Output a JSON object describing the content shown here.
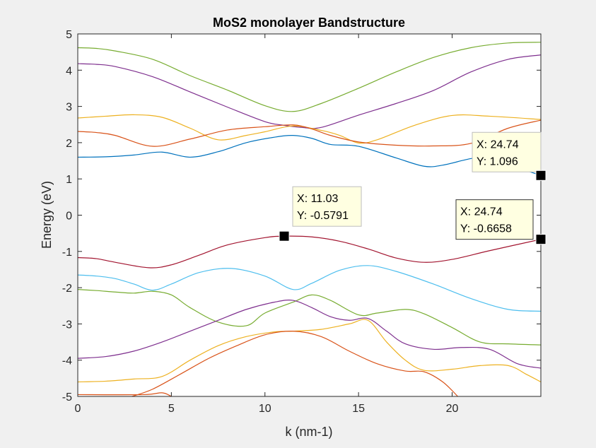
{
  "chart_data": {
    "type": "line",
    "title": "MoS2 monolayer Bandstructure",
    "xlabel": "k (nm-1)",
    "ylabel": "Energy (eV)",
    "xlim": [
      0,
      24.74
    ],
    "ylim": [
      -5,
      5
    ],
    "xticks": [
      0,
      5,
      10,
      15,
      20
    ],
    "yticks": [
      -5,
      -4,
      -3,
      -2,
      -1,
      0,
      1,
      2,
      3,
      4,
      5
    ],
    "grid": false,
    "legend": "none",
    "series": [
      {
        "color": "#77ac30",
        "points": [
          [
            0,
            4.62
          ],
          [
            1,
            4.6
          ],
          [
            2,
            4.53
          ],
          [
            4,
            4.3
          ],
          [
            6,
            3.85
          ],
          [
            8,
            3.45
          ],
          [
            10,
            3.02
          ],
          [
            11.5,
            2.86
          ],
          [
            13,
            3.08
          ],
          [
            15,
            3.5
          ],
          [
            17,
            3.95
          ],
          [
            19,
            4.35
          ],
          [
            21,
            4.62
          ],
          [
            23,
            4.75
          ],
          [
            24.74,
            4.77
          ]
        ]
      },
      {
        "color": "#7e2f8e",
        "points": [
          [
            0,
            4.18
          ],
          [
            1,
            4.16
          ],
          [
            2,
            4.1
          ],
          [
            4,
            3.82
          ],
          [
            6,
            3.4
          ],
          [
            8,
            2.98
          ],
          [
            10,
            2.58
          ],
          [
            11,
            2.48
          ],
          [
            12,
            2.42
          ],
          [
            13,
            2.42
          ],
          [
            15,
            2.76
          ],
          [
            17,
            3.08
          ],
          [
            19,
            3.44
          ],
          [
            21,
            3.95
          ],
          [
            23,
            4.3
          ],
          [
            24.74,
            4.42
          ]
        ]
      },
      {
        "color": "#edb120",
        "points": [
          [
            0,
            2.68
          ],
          [
            1.5,
            2.73
          ],
          [
            3,
            2.77
          ],
          [
            4.5,
            2.7
          ],
          [
            6,
            2.4
          ],
          [
            7.5,
            2.08
          ],
          [
            9,
            2.2
          ],
          [
            10,
            2.3
          ],
          [
            11.5,
            2.46
          ],
          [
            13,
            2.34
          ],
          [
            14,
            2.2
          ],
          [
            15,
            1.99
          ],
          [
            16,
            2.08
          ],
          [
            18,
            2.48
          ],
          [
            20,
            2.75
          ],
          [
            22,
            2.73
          ],
          [
            24.74,
            2.64
          ]
        ]
      },
      {
        "color": "#d95319",
        "points": [
          [
            0,
            2.31
          ],
          [
            1,
            2.28
          ],
          [
            2,
            2.2
          ],
          [
            4,
            1.9
          ],
          [
            6,
            2.1
          ],
          [
            8,
            2.35
          ],
          [
            10,
            2.44
          ],
          [
            11.5,
            2.49
          ],
          [
            12.5,
            2.38
          ],
          [
            13.5,
            2.2
          ],
          [
            15,
            2.02
          ],
          [
            17,
            1.93
          ],
          [
            19,
            1.91
          ],
          [
            21,
            1.98
          ],
          [
            23,
            2.4
          ],
          [
            24.74,
            2.62
          ]
        ]
      },
      {
        "color": "#0072bd",
        "points": [
          [
            0,
            1.6
          ],
          [
            1.5,
            1.61
          ],
          [
            3,
            1.66
          ],
          [
            4.5,
            1.74
          ],
          [
            6,
            1.6
          ],
          [
            7.5,
            1.75
          ],
          [
            9,
            2.0
          ],
          [
            10.5,
            2.15
          ],
          [
            11.5,
            2.2
          ],
          [
            12.5,
            2.12
          ],
          [
            13.5,
            1.95
          ],
          [
            15,
            1.9
          ],
          [
            17,
            1.58
          ],
          [
            18.5,
            1.35
          ],
          [
            19.5,
            1.38
          ],
          [
            21,
            1.56
          ],
          [
            22,
            1.6
          ],
          [
            23,
            1.4
          ],
          [
            24.74,
            1.096
          ]
        ]
      },
      {
        "color": "#a2142f",
        "points": [
          [
            0,
            -1.17
          ],
          [
            1,
            -1.2
          ],
          [
            2,
            -1.3
          ],
          [
            3.8,
            -1.45
          ],
          [
            5,
            -1.37
          ],
          [
            6.5,
            -1.1
          ],
          [
            8,
            -0.82
          ],
          [
            10,
            -0.62
          ],
          [
            11.03,
            -0.5791
          ],
          [
            12.5,
            -0.6
          ],
          [
            14,
            -0.72
          ],
          [
            15.5,
            -0.93
          ],
          [
            17,
            -1.18
          ],
          [
            18.5,
            -1.3
          ],
          [
            20,
            -1.22
          ],
          [
            22,
            -0.98
          ],
          [
            24.74,
            -0.6658
          ]
        ]
      },
      {
        "color": "#4dbeee",
        "points": [
          [
            0,
            -1.65
          ],
          [
            1,
            -1.68
          ],
          [
            2,
            -1.75
          ],
          [
            3,
            -1.9
          ],
          [
            4,
            -2.07
          ],
          [
            5,
            -1.9
          ],
          [
            6.5,
            -1.58
          ],
          [
            8.2,
            -1.47
          ],
          [
            10,
            -1.68
          ],
          [
            11.5,
            -2.05
          ],
          [
            12.5,
            -1.88
          ],
          [
            14,
            -1.52
          ],
          [
            15.5,
            -1.39
          ],
          [
            17,
            -1.55
          ],
          [
            19,
            -1.9
          ],
          [
            21,
            -2.3
          ],
          [
            23,
            -2.6
          ],
          [
            24.74,
            -2.65
          ]
        ]
      },
      {
        "color": "#77ac30",
        "points": [
          [
            0,
            -2.05
          ],
          [
            1,
            -2.08
          ],
          [
            2,
            -2.12
          ],
          [
            3,
            -2.15
          ],
          [
            4,
            -2.1
          ],
          [
            5,
            -2.2
          ],
          [
            6,
            -2.55
          ],
          [
            7.5,
            -2.95
          ],
          [
            9,
            -3.05
          ],
          [
            10,
            -2.7
          ],
          [
            11.5,
            -2.4
          ],
          [
            12.5,
            -2.2
          ],
          [
            13.5,
            -2.35
          ],
          [
            15,
            -2.75
          ],
          [
            16,
            -2.7
          ],
          [
            17.5,
            -2.6
          ],
          [
            18.5,
            -2.72
          ],
          [
            20,
            -3.1
          ],
          [
            21.5,
            -3.5
          ],
          [
            23,
            -3.55
          ],
          [
            24.74,
            -3.58
          ]
        ]
      },
      {
        "color": "#7e2f8e",
        "points": [
          [
            0,
            -3.95
          ],
          [
            1.5,
            -3.9
          ],
          [
            3,
            -3.75
          ],
          [
            4.5,
            -3.5
          ],
          [
            6,
            -3.2
          ],
          [
            7.5,
            -2.9
          ],
          [
            9,
            -2.6
          ],
          [
            10.5,
            -2.4
          ],
          [
            11.5,
            -2.35
          ],
          [
            12.5,
            -2.55
          ],
          [
            13.5,
            -2.8
          ],
          [
            14.5,
            -2.9
          ],
          [
            15.5,
            -2.85
          ],
          [
            16.5,
            -3.2
          ],
          [
            17.5,
            -3.55
          ],
          [
            19,
            -3.7
          ],
          [
            20.5,
            -3.65
          ],
          [
            22,
            -3.7
          ],
          [
            23.5,
            -4.1
          ],
          [
            24.74,
            -4.22
          ]
        ]
      },
      {
        "color": "#edb120",
        "points": [
          [
            0,
            -4.6
          ],
          [
            1.5,
            -4.58
          ],
          [
            3,
            -4.52
          ],
          [
            4.5,
            -4.45
          ],
          [
            6,
            -4.0
          ],
          [
            7.5,
            -3.6
          ],
          [
            9,
            -3.35
          ],
          [
            10.5,
            -3.22
          ],
          [
            11.5,
            -3.2
          ],
          [
            13,
            -3.15
          ],
          [
            14.5,
            -3.0
          ],
          [
            15.5,
            -2.9
          ],
          [
            16.5,
            -3.5
          ],
          [
            17.5,
            -4.0
          ],
          [
            18.5,
            -4.28
          ],
          [
            20,
            -4.25
          ],
          [
            21.5,
            -4.15
          ],
          [
            23,
            -4.15
          ],
          [
            24,
            -4.4
          ],
          [
            24.74,
            -4.6
          ]
        ]
      },
      {
        "color": "#d95319",
        "points": [
          [
            2.9,
            -5.0
          ],
          [
            4,
            -4.8
          ],
          [
            5.5,
            -4.38
          ],
          [
            7,
            -3.95
          ],
          [
            8.5,
            -3.6
          ],
          [
            10,
            -3.3
          ],
          [
            11.5,
            -3.2
          ],
          [
            13,
            -3.35
          ],
          [
            14.5,
            -3.75
          ],
          [
            16,
            -4.1
          ],
          [
            17.5,
            -4.3
          ],
          [
            18.5,
            -4.32
          ],
          [
            19.5,
            -4.6
          ],
          [
            20.3,
            -5.0
          ]
        ]
      },
      {
        "color": "#d95319",
        "points": [
          [
            0,
            -4.95
          ],
          [
            3.5,
            -4.95
          ],
          [
            4.5,
            -4.9
          ],
          [
            5,
            -5.0
          ]
        ]
      }
    ],
    "datatips": [
      {
        "label_x": "X: 11.03",
        "label_y": "Y: -0.5791",
        "x": 11.03,
        "y": -0.5791
      },
      {
        "label_x": "X: 24.74",
        "label_y": "Y: 1.096",
        "x": 24.74,
        "y": 1.096
      },
      {
        "label_x": "X: 24.74",
        "label_y": "Y: -0.6658",
        "x": 24.74,
        "y": -0.6658
      }
    ]
  }
}
